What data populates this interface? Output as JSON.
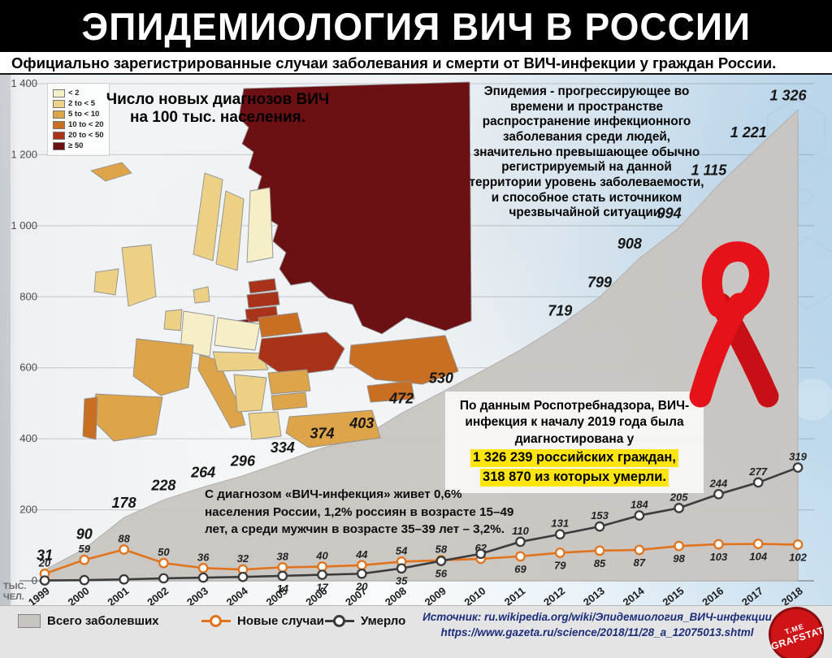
{
  "header": {
    "title": "ЭПИДЕМИОЛОГИЯ ВИЧ В РОССИИ",
    "subtitle": "Официально зарегистрированные случаи заболевания и смерти от ВИЧ-инфекции у граждан России."
  },
  "map": {
    "caption_line1": "Число новых диагнозов ВИЧ",
    "caption_line2": "на 100 тыс. населения.",
    "legend": {
      "labels": [
        "< 2",
        "2 to < 5",
        "5 to < 10",
        "10 to < 20",
        "20 to < 50",
        "≥ 50"
      ],
      "colors": [
        "#f6eec6",
        "#ecd085",
        "#dda44a",
        "#c96f24",
        "#a93318",
        "#6d1013"
      ]
    },
    "regions": {
      "iceland": 2,
      "norway": 1,
      "sweden": 1,
      "finland": 0,
      "uk": 1,
      "ireland": 1,
      "denmark": 1,
      "estonia": 4,
      "latvia": 4,
      "lithuania": 4,
      "kaliningrad": 5,
      "poland": 0,
      "germany": 0,
      "benelux": 1,
      "france": 2,
      "spain": 2,
      "portugal": 3,
      "italy": 2,
      "central_europe": 1,
      "belarus": 3,
      "ukraine": 4,
      "romania": 2,
      "balkans": 1,
      "bulgaria": 2,
      "greece": 1,
      "turkey": 2,
      "kazakhstan": 3,
      "caucasus": 3,
      "russia": 5
    }
  },
  "epidemic_definition": {
    "term": "Эпидемия",
    "text": " - прогрессирующее во времени и пространстве распространение инфекционного заболевания среди людей, значительно превышающее обычно регистрируемый на данной территории уровень заболеваемости, и способное стать источником чрезвычайной ситуации."
  },
  "rospotrebnadzor": {
    "intro": "По данным Роспотребнадзора, ВИЧ-инфекция к началу 2019 года была диагностирована у",
    "highlight1": "1 326 239 российских граждан,",
    "highlight2": "318 870 из которых умерли."
  },
  "diagnosis_stats": "С диагнозом «ВИЧ-инфекция» живет 0,6% населения России, 1,2% россиян в возрасте 15–49 лет, а среди мужчин в возрасте 35–39 лет – 3,2%.",
  "legend_bar": {
    "total": "Всего заболевших",
    "new": "Новые случаи",
    "deaths": "Умерло"
  },
  "source": {
    "line1": "Источник: ru.wikipedia.org/wiki/Эпидемиология_ВИЧ-инфекции",
    "line2": "https://www.gazeta.ru/science/2018/11/28_a_12075013.shtml"
  },
  "logo": {
    "line1": "T.ME",
    "line2": "GRAFSTAT"
  },
  "axis": {
    "unit_line1": "ТЫС.",
    "unit_line2": "ЧЕЛ."
  },
  "chart_data": {
    "type": "area+line",
    "title": "Официально зарегистрированные случаи заболевания и смерти от ВИЧ-инфекции у граждан России",
    "x": [
      1999,
      2000,
      2001,
      2002,
      2003,
      2004,
      2005,
      2006,
      2007,
      2008,
      2009,
      2010,
      2011,
      2012,
      2013,
      2014,
      2015,
      2016,
      2017,
      2018
    ],
    "ylim": [
      0,
      1400
    ],
    "yticks": [
      0,
      200,
      400,
      600,
      800,
      1000,
      1200,
      1400
    ],
    "ylabel": "тыс. чел.",
    "grid": true,
    "legend_position": "bottom",
    "series": [
      {
        "name": "Всего заболевших",
        "type": "area",
        "color": "#c8c4c0",
        "values": [
          31,
          90,
          178,
          228,
          264,
          296,
          334,
          374,
          403,
          472,
          530,
          589,
          650,
          719,
          799,
          908,
          994,
          1115,
          1221,
          1326
        ],
        "labels": [
          "31",
          "90",
          "178",
          "228",
          "264",
          "296",
          "334",
          "374",
          "403",
          "472",
          "530",
          null,
          null,
          "719",
          "799",
          "908",
          "994",
          "1 115",
          "1 221",
          "1 326"
        ]
      },
      {
        "name": "Новые случаи",
        "type": "line",
        "color": "#e2731d",
        "values": [
          20,
          59,
          88,
          50,
          36,
          32,
          38,
          40,
          44,
          54,
          58,
          62,
          69,
          79,
          85,
          87,
          98,
          103,
          104,
          102
        ],
        "labels": [
          "20",
          "59",
          "88",
          "50",
          "36",
          "32",
          "38",
          "40",
          "44",
          "54",
          "58",
          "62",
          "69",
          "79",
          "85",
          "87",
          "98",
          "103",
          "104",
          "102"
        ]
      },
      {
        "name": "Умерло",
        "type": "line",
        "color": "#3b3b3b",
        "values": [
          1,
          2,
          4,
          7,
          9,
          11,
          14,
          17,
          20,
          35,
          56,
          76,
          110,
          131,
          153,
          184,
          205,
          244,
          277,
          319
        ],
        "labels": [
          null,
          null,
          null,
          null,
          null,
          null,
          "14",
          "17",
          "20",
          "35",
          "56",
          null,
          "110",
          "131",
          "153",
          "184",
          "205",
          "244",
          "277",
          "319"
        ]
      }
    ]
  }
}
